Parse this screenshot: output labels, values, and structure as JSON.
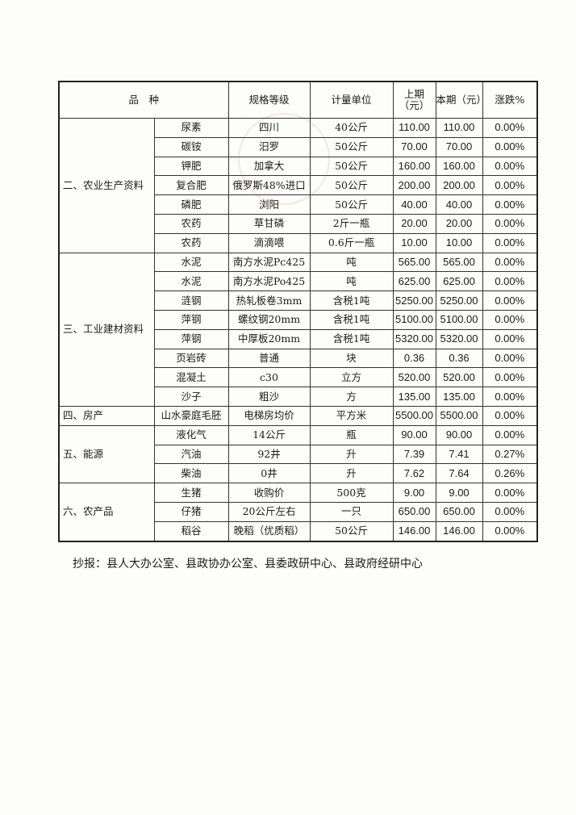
{
  "table": {
    "headers": {
      "variety": "品　种",
      "spec": "规格等级",
      "unit": "计量单位",
      "prev": "上期（元）",
      "curr": "本期（元）",
      "change": "涨跌%"
    },
    "groups": [
      {
        "category": "二、农业生产资料",
        "rows": [
          {
            "item": "尿素",
            "spec": "四川",
            "unit": "40公斤",
            "prev": "110.00",
            "curr": "110.00",
            "change": "0.00%"
          },
          {
            "item": "碳铵",
            "spec": "汨罗",
            "unit": "50公斤",
            "prev": "70.00",
            "curr": "70.00",
            "change": "0.00%"
          },
          {
            "item": "钾肥",
            "spec": "加拿大",
            "unit": "50公斤",
            "prev": "160.00",
            "curr": "160.00",
            "change": "0.00%"
          },
          {
            "item": "复合肥",
            "spec": "俄罗斯48%进口",
            "unit": "50公斤",
            "prev": "200.00",
            "curr": "200.00",
            "change": "0.00%"
          },
          {
            "item": "磷肥",
            "spec": "浏阳",
            "unit": "50公斤",
            "prev": "40.00",
            "curr": "40.00",
            "change": "0.00%"
          },
          {
            "item": "农药",
            "spec": "草甘磷",
            "unit": "2斤一瓶",
            "prev": "20.00",
            "curr": "20.00",
            "change": "0.00%"
          },
          {
            "item": "农药",
            "spec": "滴滴喂",
            "unit": "0.6斤一瓶",
            "prev": "10.00",
            "curr": "10.00",
            "change": "0.00%"
          }
        ]
      },
      {
        "category": "三、工业建材资料",
        "rows": [
          {
            "item": "水泥",
            "spec": "南方水泥Pc425",
            "unit": "吨",
            "prev": "565.00",
            "curr": "565.00",
            "change": "0.00%"
          },
          {
            "item": "水泥",
            "spec": "南方水泥Po425",
            "unit": "吨",
            "prev": "625.00",
            "curr": "625.00",
            "change": "0.00%"
          },
          {
            "item": "涟钢",
            "spec": "热轧板卷3mm",
            "unit": "含税1吨",
            "prev": "5250.00",
            "curr": "5250.00",
            "change": "0.00%"
          },
          {
            "item": "萍钢",
            "spec": "螺纹钢20mm",
            "unit": "含税1吨",
            "prev": "5100.00",
            "curr": "5100.00",
            "change": "0.00%"
          },
          {
            "item": "萍钢",
            "spec": "中厚板20mm",
            "unit": "含税1吨",
            "prev": "5320.00",
            "curr": "5320.00",
            "change": "0.00%"
          },
          {
            "item": "页岩砖",
            "spec": "普通",
            "unit": "块",
            "prev": "0.36",
            "curr": "0.36",
            "change": "0.00%"
          },
          {
            "item": "混凝土",
            "spec": "c30",
            "unit": "立方",
            "prev": "520.00",
            "curr": "520.00",
            "change": "0.00%"
          },
          {
            "item": "沙子",
            "spec": "粗沙",
            "unit": "方",
            "prev": "135.00",
            "curr": "135.00",
            "change": "0.00%"
          }
        ]
      },
      {
        "category": "四、房产",
        "rows": [
          {
            "item": "山水豪庭毛胚",
            "spec": "电梯房均价",
            "unit": "平方米",
            "prev": "5500.00",
            "curr": "5500.00",
            "change": "0.00%"
          }
        ]
      },
      {
        "category": "五、能源",
        "rows": [
          {
            "item": "液化气",
            "spec": "14公斤",
            "unit": "瓶",
            "prev": "90.00",
            "curr": "90.00",
            "change": "0.00%"
          },
          {
            "item": "汽油",
            "spec": "92井",
            "unit": "升",
            "prev": "7.39",
            "curr": "7.41",
            "change": "0.27%"
          },
          {
            "item": "柴油",
            "spec": "0井",
            "unit": "升",
            "prev": "7.62",
            "curr": "7.64",
            "change": "0.26%"
          }
        ]
      },
      {
        "category": "六、农产品",
        "rows": [
          {
            "item": "生猪",
            "spec": "收购价",
            "unit": "500克",
            "prev": "9.00",
            "curr": "9.00",
            "change": "0.00%"
          },
          {
            "item": "仔猪",
            "spec": "20公斤左右",
            "unit": "一只",
            "prev": "650.00",
            "curr": "650.00",
            "change": "0.00%"
          },
          {
            "item": "稻谷",
            "spec": "晚稻（优质稻）",
            "unit": "50公斤",
            "prev": "146.00",
            "curr": "146.00",
            "change": "0.00%"
          }
        ]
      }
    ]
  },
  "note": "抄报：县人大办公室、县政协办公室、县委政研中心、县政府经研中心"
}
